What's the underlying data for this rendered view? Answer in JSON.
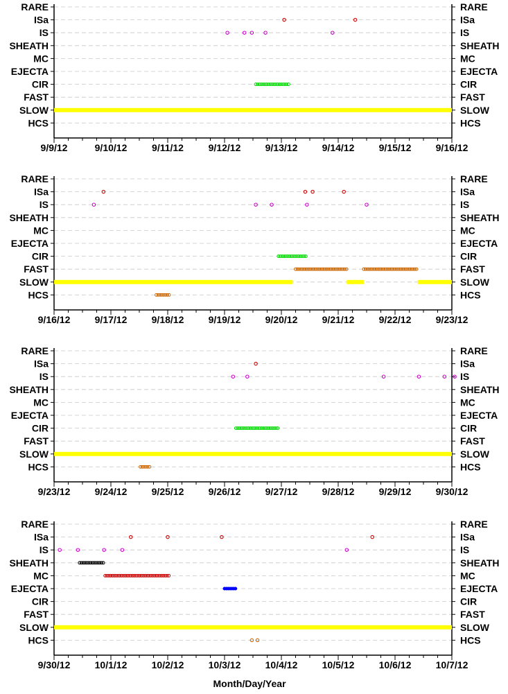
{
  "categories": [
    "RARE",
    "ISa",
    "IS",
    "SHEATH",
    "MC",
    "EJECTA",
    "CIR",
    "FAST",
    "SLOW",
    "HCS"
  ],
  "xlabel": "Month/Day/Year",
  "colors": {
    "RARE": "#000000",
    "ISa": "#cc0000",
    "IS": "#cc00cc",
    "SHEATH": "#000000",
    "MC": "#cc0000",
    "EJECTA": "#0000ff",
    "CIR": "#00dd00",
    "FAST": "#cc6600",
    "SLOW": "#ffff00",
    "HCS": "#cc6600"
  },
  "chart_data": [
    {
      "type": "scatter",
      "x_range_days": [
        0,
        7
      ],
      "tick_labels": [
        "9/9/12",
        "9/10/12",
        "9/11/12",
        "9/12/12",
        "9/13/12",
        "9/14/12",
        "9/15/12",
        "9/16/12"
      ],
      "points": {
        "ISa": [
          4.05,
          5.3
        ],
        "IS": [
          3.05,
          3.35,
          3.48,
          3.72,
          4.9
        ]
      },
      "intervals": {
        "CIR": [
          [
            3.55,
            4.15
          ]
        ],
        "SLOW": [
          [
            0.0,
            7.0
          ]
        ]
      }
    },
    {
      "type": "scatter",
      "x_range_days": [
        0,
        7
      ],
      "tick_labels": [
        "9/16/12",
        "9/17/12",
        "9/18/12",
        "9/19/12",
        "9/20/12",
        "9/21/12",
        "9/22/12",
        "9/23/12"
      ],
      "points": {
        "ISa": [
          0.87,
          4.42,
          4.55,
          5.1
        ],
        "IS": [
          0.7,
          3.55,
          3.83,
          4.45,
          5.5
        ]
      },
      "intervals": {
        "CIR": [
          [
            3.95,
            4.45
          ]
        ],
        "FAST": [
          [
            4.25,
            5.15
          ],
          [
            5.45,
            6.4
          ]
        ],
        "SLOW": [
          [
            0.0,
            4.2
          ],
          [
            5.15,
            5.45
          ],
          [
            6.4,
            7.0
          ]
        ],
        "HCS": [
          [
            1.8,
            2.05
          ]
        ]
      }
    },
    {
      "type": "scatter",
      "x_range_days": [
        0,
        7
      ],
      "tick_labels": [
        "9/23/12",
        "9/24/12",
        "9/25/12",
        "9/26/12",
        "9/27/12",
        "9/28/12",
        "9/29/12",
        "9/30/12"
      ],
      "points": {
        "ISa": [
          3.55
        ],
        "IS": [
          3.15,
          3.4,
          5.8,
          6.42,
          6.87,
          7.05
        ]
      },
      "intervals": {
        "CIR": [
          [
            3.2,
            3.95
          ]
        ],
        "SLOW": [
          [
            0.0,
            7.0
          ]
        ],
        "HCS": [
          [
            1.52,
            1.7
          ]
        ]
      }
    },
    {
      "type": "scatter",
      "x_range_days": [
        0,
        7
      ],
      "tick_labels": [
        "9/30/12",
        "10/1/12",
        "10/2/12",
        "10/3/12",
        "10/4/12",
        "10/5/12",
        "10/6/12",
        "10/7/12"
      ],
      "points": {
        "ISa": [
          1.35,
          2.0,
          2.95,
          5.6
        ],
        "IS": [
          0.1,
          0.42,
          0.88,
          1.2,
          5.15
        ],
        "HCS": [
          3.48,
          3.58
        ]
      },
      "intervals": {
        "SHEATH": [
          [
            0.45,
            0.88
          ]
        ],
        "MC": [
          [
            0.9,
            2.02
          ]
        ],
        "EJECTA": [
          [
            3.0,
            3.2
          ]
        ],
        "SLOW": [
          [
            0.0,
            7.0
          ]
        ]
      }
    }
  ]
}
